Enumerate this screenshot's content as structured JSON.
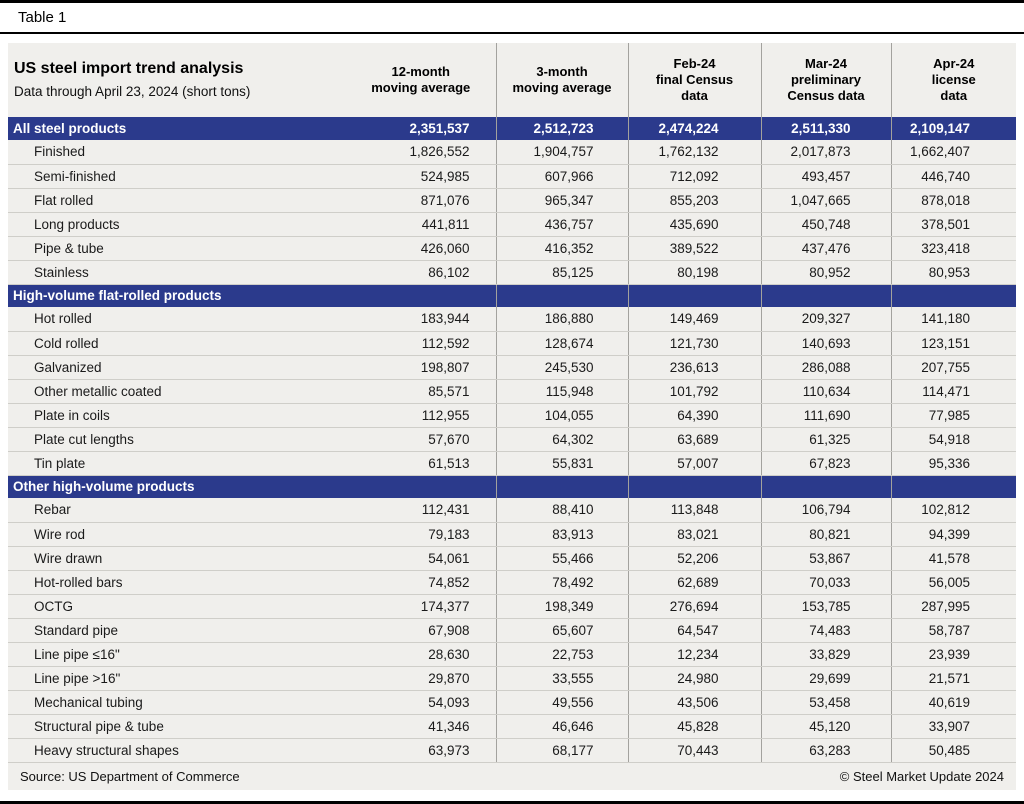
{
  "caption": "Table 1",
  "colors": {
    "section-bg": "#2b3a8c",
    "table-bg": "#f0efec",
    "grid": "#cfcec9",
    "vline": "#a3a29e",
    "rule": "#000000",
    "text": "#1a1a1a"
  },
  "chart_data": {
    "type": "table",
    "title": "US steel import trend analysis",
    "subtitle": "Data through April 23, 2024 (short tons)",
    "columns": [
      {
        "lines": [
          "12-month",
          "moving average"
        ]
      },
      {
        "lines": [
          "3-month",
          "moving average"
        ]
      },
      {
        "lines": [
          "Feb-24",
          "final Census",
          "data"
        ]
      },
      {
        "lines": [
          "Mar-24",
          "preliminary",
          "Census data"
        ]
      },
      {
        "lines": [
          "Apr-24",
          "license",
          "data"
        ]
      }
    ],
    "rows": [
      {
        "type": "section",
        "label": "All steel products",
        "values": [
          "2,351,537",
          "2,512,723",
          "2,474,224",
          "2,511,330",
          "2,109,147"
        ]
      },
      {
        "type": "data",
        "label": "Finished",
        "values": [
          "1,826,552",
          "1,904,757",
          "1,762,132",
          "2,017,873",
          "1,662,407"
        ]
      },
      {
        "type": "data",
        "label": "Semi-finished",
        "values": [
          "524,985",
          "607,966",
          "712,092",
          "493,457",
          "446,740"
        ]
      },
      {
        "type": "data",
        "label": "Flat rolled",
        "values": [
          "871,076",
          "965,347",
          "855,203",
          "1,047,665",
          "878,018"
        ]
      },
      {
        "type": "data",
        "label": "Long products",
        "values": [
          "441,811",
          "436,757",
          "435,690",
          "450,748",
          "378,501"
        ]
      },
      {
        "type": "data",
        "label": "Pipe & tube",
        "values": [
          "426,060",
          "416,352",
          "389,522",
          "437,476",
          "323,418"
        ]
      },
      {
        "type": "data",
        "label": "Stainless",
        "values": [
          "86,102",
          "85,125",
          "80,198",
          "80,952",
          "80,953"
        ]
      },
      {
        "type": "section",
        "label": "High-volume flat-rolled products",
        "values": [
          "",
          "",
          "",
          "",
          ""
        ]
      },
      {
        "type": "data",
        "label": "Hot rolled",
        "values": [
          "183,944",
          "186,880",
          "149,469",
          "209,327",
          "141,180"
        ]
      },
      {
        "type": "data",
        "label": "Cold rolled",
        "values": [
          "112,592",
          "128,674",
          "121,730",
          "140,693",
          "123,151"
        ]
      },
      {
        "type": "data",
        "label": "Galvanized",
        "values": [
          "198,807",
          "245,530",
          "236,613",
          "286,088",
          "207,755"
        ]
      },
      {
        "type": "data",
        "label": "Other metallic coated",
        "values": [
          "85,571",
          "115,948",
          "101,792",
          "110,634",
          "114,471"
        ]
      },
      {
        "type": "data",
        "label": "Plate in coils",
        "values": [
          "112,955",
          "104,055",
          "64,390",
          "111,690",
          "77,985"
        ]
      },
      {
        "type": "data",
        "label": "Plate cut lengths",
        "values": [
          "57,670",
          "64,302",
          "63,689",
          "61,325",
          "54,918"
        ]
      },
      {
        "type": "data",
        "label": "Tin plate",
        "values": [
          "61,513",
          "55,831",
          "57,007",
          "67,823",
          "95,336"
        ]
      },
      {
        "type": "section",
        "label": "Other high-volume products",
        "values": [
          "",
          "",
          "",
          "",
          ""
        ]
      },
      {
        "type": "data",
        "label": "Rebar",
        "values": [
          "112,431",
          "88,410",
          "113,848",
          "106,794",
          "102,812"
        ]
      },
      {
        "type": "data",
        "label": "Wire rod",
        "values": [
          "79,183",
          "83,913",
          "83,021",
          "80,821",
          "94,399"
        ]
      },
      {
        "type": "data",
        "label": "Wire drawn",
        "values": [
          "54,061",
          "55,466",
          "52,206",
          "53,867",
          "41,578"
        ]
      },
      {
        "type": "data",
        "label": "Hot-rolled bars",
        "values": [
          "74,852",
          "78,492",
          "62,689",
          "70,033",
          "56,005"
        ]
      },
      {
        "type": "data",
        "label": "OCTG",
        "values": [
          "174,377",
          "198,349",
          "276,694",
          "153,785",
          "287,995"
        ]
      },
      {
        "type": "data",
        "label": "Standard pipe",
        "values": [
          "67,908",
          "65,607",
          "64,547",
          "74,483",
          "58,787"
        ]
      },
      {
        "type": "data",
        "label": "Line pipe ≤16\"",
        "values": [
          "28,630",
          "22,753",
          "12,234",
          "33,829",
          "23,939"
        ]
      },
      {
        "type": "data",
        "label": "Line pipe >16\"",
        "values": [
          "29,870",
          "33,555",
          "24,980",
          "29,699",
          "21,571"
        ]
      },
      {
        "type": "data",
        "label": "Mechanical tubing",
        "values": [
          "54,093",
          "49,556",
          "43,506",
          "53,458",
          "40,619"
        ]
      },
      {
        "type": "data",
        "label": "Structural pipe & tube",
        "values": [
          "41,346",
          "46,646",
          "45,828",
          "45,120",
          "33,907"
        ]
      },
      {
        "type": "data",
        "label": "Heavy structural shapes",
        "values": [
          "63,973",
          "68,177",
          "70,443",
          "63,283",
          "50,485"
        ]
      }
    ]
  },
  "footer": {
    "source": "Source: US Department of Commerce",
    "copyright": "© Steel Market Update 2024"
  }
}
